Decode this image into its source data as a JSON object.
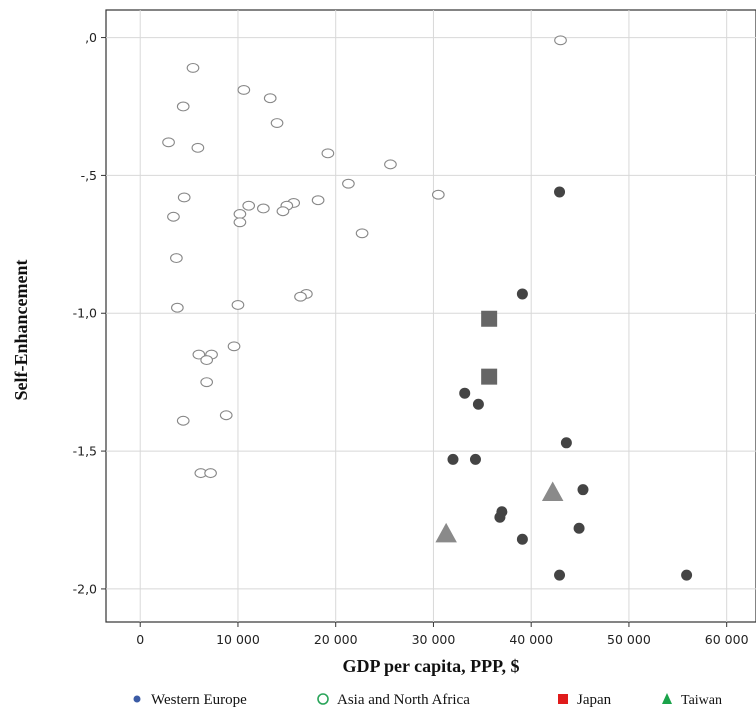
{
  "chart_data": {
    "type": "scatter",
    "title": "",
    "xlabel": "GDP per capita, PPP, $",
    "ylabel": "Self-Enhancement",
    "xlim": [
      -3500,
      63000
    ],
    "ylim": [
      -2.12,
      0.1
    ],
    "grid": true,
    "x_ticks": [
      {
        "value": 0,
        "label": "0"
      },
      {
        "value": 10000,
        "label": "10 000"
      },
      {
        "value": 20000,
        "label": "20 000"
      },
      {
        "value": 30000,
        "label": "30 000"
      },
      {
        "value": 40000,
        "label": "40 000"
      },
      {
        "value": 50000,
        "label": "50 000"
      },
      {
        "value": 60000,
        "label": "60 000"
      }
    ],
    "y_ticks": [
      {
        "value": 0,
        "label": ",0"
      },
      {
        "value": -0.5,
        "label": "-,5"
      },
      {
        "value": -1.0,
        "label": "-1,0"
      },
      {
        "value": -1.5,
        "label": "-1,5"
      },
      {
        "value": -2.0,
        "label": "-2,0"
      }
    ],
    "legend_position": "bottom",
    "series": [
      {
        "name": "Western Europe",
        "marker": "circle-filled",
        "color": "#444444",
        "legend_color": "#3b5ba5",
        "points": [
          {
            "x": 42900,
            "y": -0.56
          },
          {
            "x": 39100,
            "y": -0.93
          },
          {
            "x": 33200,
            "y": -1.29
          },
          {
            "x": 34600,
            "y": -1.33
          },
          {
            "x": 43600,
            "y": -1.47
          },
          {
            "x": 32000,
            "y": -1.53
          },
          {
            "x": 34300,
            "y": -1.53
          },
          {
            "x": 45300,
            "y": -1.64
          },
          {
            "x": 37000,
            "y": -1.72
          },
          {
            "x": 36800,
            "y": -1.74
          },
          {
            "x": 44900,
            "y": -1.78
          },
          {
            "x": 39100,
            "y": -1.82
          },
          {
            "x": 42900,
            "y": -1.95
          },
          {
            "x": 55900,
            "y": -1.95
          }
        ]
      },
      {
        "name": "Asia and North Africa",
        "marker": "circle-open",
        "color": "#888888",
        "legend_color": "#2aa55a",
        "points": [
          {
            "x": 43000,
            "y": -0.01
          },
          {
            "x": 5400,
            "y": -0.11
          },
          {
            "x": 10600,
            "y": -0.19
          },
          {
            "x": 13300,
            "y": -0.22
          },
          {
            "x": 4400,
            "y": -0.25
          },
          {
            "x": 14000,
            "y": -0.31
          },
          {
            "x": 2900,
            "y": -0.38
          },
          {
            "x": 5900,
            "y": -0.4
          },
          {
            "x": 19200,
            "y": -0.42
          },
          {
            "x": 25600,
            "y": -0.46
          },
          {
            "x": 21300,
            "y": -0.53
          },
          {
            "x": 30500,
            "y": -0.57
          },
          {
            "x": 4500,
            "y": -0.58
          },
          {
            "x": 18200,
            "y": -0.59
          },
          {
            "x": 15700,
            "y": -0.6
          },
          {
            "x": 15000,
            "y": -0.61
          },
          {
            "x": 11100,
            "y": -0.61
          },
          {
            "x": 12600,
            "y": -0.62
          },
          {
            "x": 14600,
            "y": -0.63
          },
          {
            "x": 10200,
            "y": -0.64
          },
          {
            "x": 3400,
            "y": -0.65
          },
          {
            "x": 10200,
            "y": -0.67
          },
          {
            "x": 22700,
            "y": -0.71
          },
          {
            "x": 3700,
            "y": -0.8
          },
          {
            "x": 17000,
            "y": -0.93
          },
          {
            "x": 16400,
            "y": -0.94
          },
          {
            "x": 3800,
            "y": -0.98
          },
          {
            "x": 10000,
            "y": -0.97
          },
          {
            "x": 9600,
            "y": -1.12
          },
          {
            "x": 6000,
            "y": -1.15
          },
          {
            "x": 7300,
            "y": -1.15
          },
          {
            "x": 6800,
            "y": -1.17
          },
          {
            "x": 6800,
            "y": -1.25
          },
          {
            "x": 8800,
            "y": -1.37
          },
          {
            "x": 4400,
            "y": -1.39
          },
          {
            "x": 6200,
            "y": -1.58
          },
          {
            "x": 7200,
            "y": -1.58
          }
        ]
      },
      {
        "name": "Japan",
        "marker": "square",
        "color": "#666666",
        "legend_color": "#e01b1b",
        "points": [
          {
            "x": 35700,
            "y": -1.02
          },
          {
            "x": 35700,
            "y": -1.23
          }
        ]
      },
      {
        "name": "Taiwan",
        "marker": "triangle",
        "color": "#8a8a8a",
        "legend_color": "#1aa34a",
        "points": [
          {
            "x": 31300,
            "y": -1.8
          },
          {
            "x": 42200,
            "y": -1.65
          }
        ]
      }
    ]
  }
}
